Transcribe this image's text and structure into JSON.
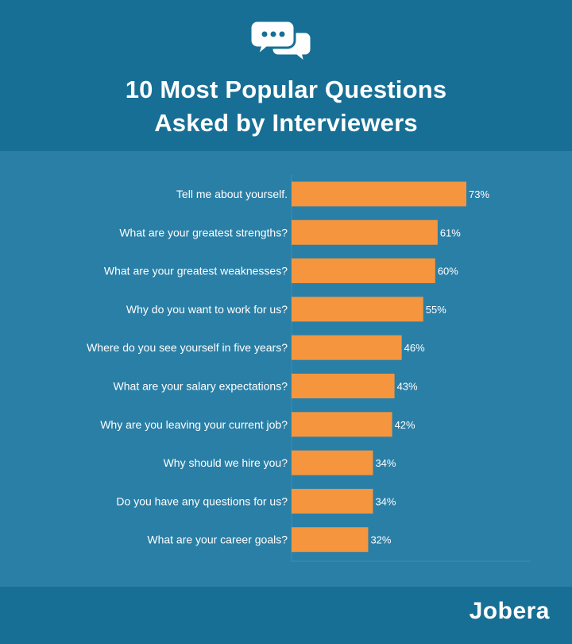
{
  "title_lines": [
    "10 Most Popular Questions",
    "Asked by Interviewers"
  ],
  "brand": "Jobera",
  "icon": "chat-bubbles-icon",
  "colors": {
    "background": "#176f95",
    "panel": "#2a7fa6",
    "bar": "#f5963f",
    "text": "#ffffff"
  },
  "chart_data": {
    "type": "bar",
    "orientation": "horizontal",
    "categories": [
      "Tell me about yourself.",
      "What are your greatest strengths?",
      "What are your greatest weaknesses?",
      "Why do you want to work for us?",
      "Where do you see yourself in five years?",
      "What are your salary expectations?",
      "Why are you leaving your current job?",
      "Why should we hire you?",
      "Do you have any questions for us?",
      "What are your career goals?"
    ],
    "values": [
      73,
      61,
      60,
      55,
      46,
      43,
      42,
      34,
      34,
      32
    ],
    "value_labels": [
      "73%",
      "61%",
      "60%",
      "55%",
      "46%",
      "43%",
      "42%",
      "34%",
      "34%",
      "32%"
    ],
    "grid": false
  }
}
